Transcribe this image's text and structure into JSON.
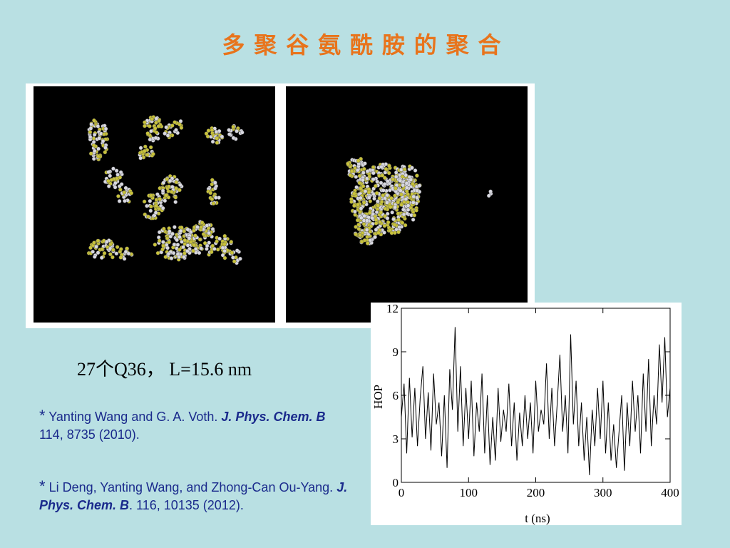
{
  "title": "多 聚 谷 氨 酰 胺 的 聚 合",
  "caption": "27个Q36， L=15.6 nm",
  "references": [
    {
      "bullet": "*",
      "authors": "Yanting Wang and G. A. Voth.",
      "journal": "J. Phys. Chem. B",
      "citation": "114, 8735 (2010)."
    },
    {
      "bullet": "*",
      "authors": "Li Deng, Yanting Wang, and Zhong-Can Ou-Yang.",
      "journal": "J. Phys. Chem. B",
      "citation": ". 116, 10135 (2012)."
    }
  ],
  "chart_data": {
    "type": "line",
    "xlabel": "t (ns)",
    "ylabel": "HOP",
    "color": "#000000",
    "xlim": [
      0,
      400
    ],
    "ylim": [
      0,
      12
    ],
    "xticks": [
      0,
      100,
      200,
      300,
      400
    ],
    "yticks": [
      0,
      3,
      6,
      9,
      12
    ],
    "x": [
      0,
      4,
      8,
      12,
      16,
      20,
      24,
      28,
      32,
      36,
      40,
      44,
      48,
      52,
      56,
      60,
      64,
      68,
      72,
      76,
      80,
      84,
      88,
      92,
      96,
      100,
      104,
      108,
      112,
      116,
      120,
      124,
      128,
      132,
      136,
      140,
      144,
      148,
      152,
      156,
      160,
      164,
      168,
      172,
      176,
      180,
      184,
      188,
      192,
      196,
      200,
      204,
      208,
      212,
      216,
      220,
      224,
      228,
      232,
      236,
      240,
      244,
      248,
      252,
      256,
      260,
      264,
      268,
      272,
      276,
      280,
      284,
      288,
      292,
      296,
      300,
      304,
      308,
      312,
      316,
      320,
      324,
      328,
      332,
      336,
      340,
      344,
      348,
      352,
      356,
      360,
      364,
      368,
      372,
      376,
      380,
      384,
      388,
      392,
      396,
      400
    ],
    "values": [
      4.5,
      6.8,
      2.0,
      7.2,
      3.1,
      6.5,
      2.5,
      5.8,
      8.0,
      3.0,
      6.2,
      2.2,
      7.5,
      4.0,
      5.5,
      1.8,
      6.0,
      1.0,
      7.8,
      5.0,
      10.7,
      3.5,
      8.0,
      2.5,
      6.5,
      3.0,
      7.0,
      1.8,
      5.5,
      3.5,
      7.5,
      2.0,
      6.0,
      1.2,
      4.5,
      1.5,
      6.5,
      2.8,
      5.0,
      3.5,
      6.8,
      2.5,
      5.5,
      1.5,
      4.8,
      2.5,
      6.0,
      3.0,
      5.5,
      2.0,
      7.0,
      3.5,
      5.0,
      4.0,
      8.2,
      3.0,
      6.5,
      2.5,
      5.5,
      8.8,
      3.5,
      6.0,
      2.0,
      10.2,
      4.0,
      7.0,
      2.5,
      5.5,
      1.5,
      4.5,
      0.5,
      5.0,
      2.5,
      6.5,
      3.0,
      7.0,
      2.0,
      5.5,
      1.5,
      4.0,
      1.0,
      3.5,
      6.0,
      0.8,
      5.5,
      2.5,
      7.0,
      3.5,
      6.0,
      2.0,
      7.5,
      3.5,
      8.5,
      2.5,
      6.0,
      4.0,
      9.5,
      5.5,
      10.0,
      4.5,
      6.5
    ]
  }
}
